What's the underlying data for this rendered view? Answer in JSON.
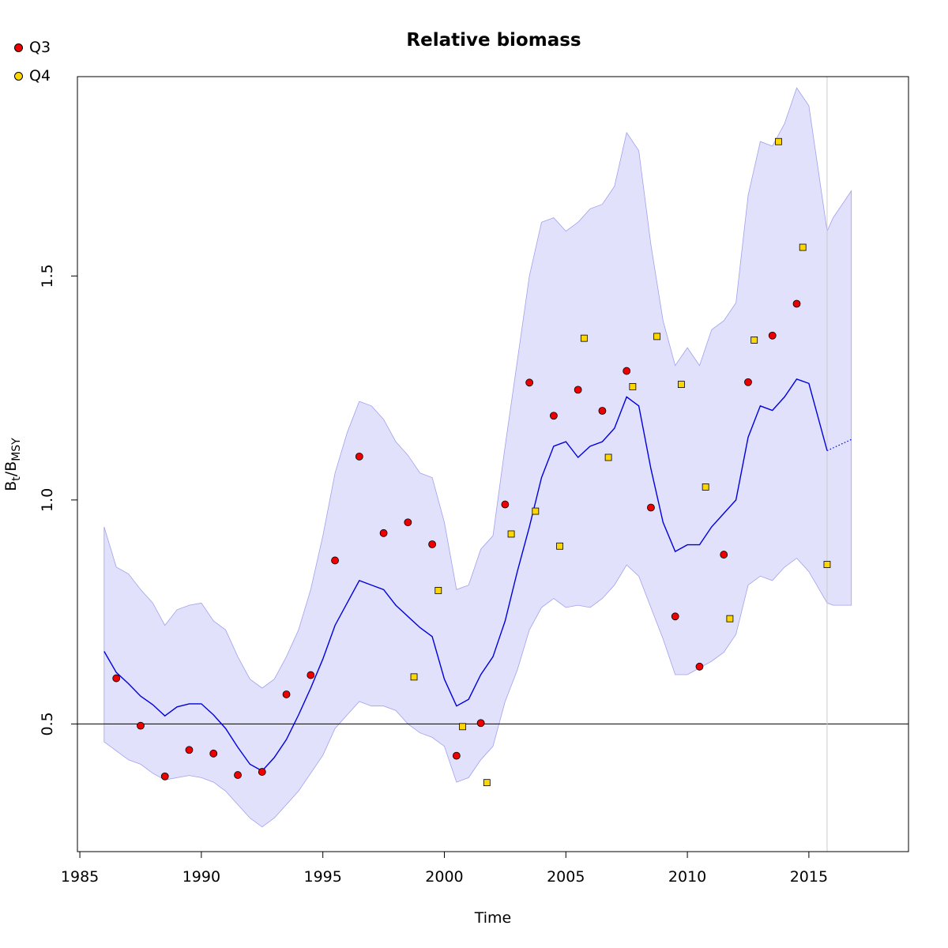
{
  "chart_data": {
    "type": "line",
    "title": "Relative biomass",
    "xlabel": "Time",
    "ylabel": {
      "main": "B",
      "sub1": "t",
      "sep": "/B",
      "sub2": "MSY"
    },
    "xlim": [
      1984.9,
      2019.1
    ],
    "ylim": [
      0.215,
      1.945
    ],
    "x_ticks": [
      1985,
      1990,
      1995,
      2000,
      2005,
      2010,
      2015
    ],
    "y_ticks": [
      0.5,
      1.0,
      1.5
    ],
    "y_tick_labels": [
      "0.5",
      "1.0",
      "1.5"
    ],
    "reference_line": 0.5,
    "forecast_start": 2015.75,
    "legend": {
      "position": "top-left",
      "items": [
        {
          "label": "Q3",
          "color": "#ee0000",
          "shape": "circle"
        },
        {
          "label": "Q4",
          "color": "#ffd700",
          "shape": "square"
        }
      ]
    },
    "colors": {
      "estimate": "#0000dd",
      "band_fill": "#e1e1fc",
      "band_edge": "#a0a0ee",
      "ref_line": "#000000",
      "vline": "#cccccc"
    },
    "series": [
      {
        "name": "Q3",
        "x": [
          1986.5,
          1987.5,
          1988.5,
          1989.5,
          1990.5,
          1991.5,
          1992.5,
          1993.5,
          1994.5,
          1995.5,
          1996.5,
          1997.5,
          1998.5,
          1999.5,
          2000.5,
          2001.5,
          2002.5,
          2003.5,
          2004.5,
          2005.5,
          2006.5,
          2007.5,
          2008.5,
          2009.5,
          2010.5,
          2011.5,
          2012.5,
          2013.5,
          2014.5
        ],
        "y": [
          0.602,
          0.496,
          0.383,
          0.442,
          0.434,
          0.386,
          0.393,
          0.566,
          0.609,
          0.865,
          1.097,
          0.926,
          0.95,
          0.901,
          0.429,
          0.502,
          0.99,
          1.262,
          1.188,
          1.246,
          1.199,
          1.288,
          0.983,
          0.74,
          0.628,
          0.878,
          1.263,
          1.367,
          1.438
        ]
      },
      {
        "name": "Q4",
        "x": [
          1998.75,
          1999.75,
          2000.75,
          2001.75,
          2002.75,
          2003.75,
          2004.75,
          2005.75,
          2006.75,
          2007.75,
          2008.75,
          2009.75,
          2010.75,
          2011.75,
          2012.75,
          2013.75,
          2014.75,
          2015.75
        ],
        "y": [
          0.605,
          0.798,
          0.494,
          0.369,
          0.924,
          0.975,
          0.897,
          1.361,
          1.095,
          1.253,
          1.365,
          1.258,
          1.029,
          0.735,
          1.357,
          1.8,
          1.564,
          0.856
        ]
      },
      {
        "name": "",
        "kind": "estimate",
        "x": [
          1986,
          1986.5,
          1987,
          1987.5,
          1988,
          1988.5,
          1989,
          1989.5,
          1990,
          1990.5,
          1991,
          1991.5,
          1992,
          1992.5,
          1993,
          1993.5,
          1994,
          1994.5,
          1995,
          1995.5,
          1996,
          1996.5,
          1997,
          1997.5,
          1998,
          1998.5,
          1999,
          1999.5,
          2000,
          2000.5,
          2001,
          2001.5,
          2002,
          2002.5,
          2003,
          2003.5,
          2004,
          2004.5,
          2005,
          2005.5,
          2006,
          2006.5,
          2007,
          2007.5,
          2008,
          2008.5,
          2009,
          2009.5,
          2010,
          2010.5,
          2011,
          2011.5,
          2012,
          2012.5,
          2013,
          2013.5,
          2014,
          2014.5,
          2015,
          2015.75
        ],
        "y": [
          0.662,
          0.615,
          0.59,
          0.562,
          0.543,
          0.518,
          0.538,
          0.545,
          0.545,
          0.52,
          0.49,
          0.448,
          0.41,
          0.395,
          0.425,
          0.465,
          0.52,
          0.58,
          0.645,
          0.72,
          0.77,
          0.82,
          0.81,
          0.8,
          0.765,
          0.74,
          0.715,
          0.695,
          0.6,
          0.54,
          0.555,
          0.61,
          0.65,
          0.73,
          0.84,
          0.94,
          1.05,
          1.12,
          1.13,
          1.095,
          1.12,
          1.13,
          1.16,
          1.23,
          1.21,
          1.07,
          0.95,
          0.885,
          0.9,
          0.9,
          0.94,
          0.97,
          1.0,
          1.14,
          1.21,
          1.2,
          1.23,
          1.27,
          1.26,
          1.11
        ]
      },
      {
        "name": "",
        "kind": "forecast",
        "x": [
          2015.75,
          2016.75
        ],
        "y": [
          1.11,
          1.135
        ]
      },
      {
        "name": "",
        "kind": "upper_bound",
        "x": [
          1986,
          1986.5,
          1987,
          1987.5,
          1988,
          1988.5,
          1989,
          1989.5,
          1990,
          1990.5,
          1991,
          1991.5,
          1992,
          1992.5,
          1993,
          1993.5,
          1994,
          1994.5,
          1995,
          1995.5,
          1996,
          1996.5,
          1997,
          1997.5,
          1998,
          1998.5,
          1999,
          1999.5,
          2000,
          2000.5,
          2001,
          2001.5,
          2002,
          2002.5,
          2003,
          2003.5,
          2004,
          2004.5,
          2005,
          2005.5,
          2006,
          2006.5,
          2007,
          2007.5,
          2008,
          2008.5,
          2009,
          2009.5,
          2010,
          2010.5,
          2011,
          2011.5,
          2012,
          2012.5,
          2013,
          2013.5,
          2014,
          2014.5,
          2015,
          2015.75,
          2016,
          2016.75
        ],
        "y": [
          0.94,
          0.85,
          0.835,
          0.8,
          0.77,
          0.72,
          0.755,
          0.765,
          0.77,
          0.73,
          0.71,
          0.65,
          0.6,
          0.58,
          0.6,
          0.65,
          0.71,
          0.8,
          0.92,
          1.06,
          1.15,
          1.22,
          1.21,
          1.18,
          1.13,
          1.1,
          1.06,
          1.05,
          0.95,
          0.8,
          0.81,
          0.89,
          0.92,
          1.12,
          1.31,
          1.5,
          1.62,
          1.63,
          1.6,
          1.62,
          1.65,
          1.66,
          1.7,
          1.82,
          1.78,
          1.57,
          1.4,
          1.3,
          1.34,
          1.3,
          1.38,
          1.4,
          1.44,
          1.68,
          1.8,
          1.79,
          1.84,
          1.92,
          1.88,
          1.6,
          1.63,
          1.69
        ]
      },
      {
        "name": "",
        "kind": "lower_bound",
        "x": [
          1986,
          1986.5,
          1987,
          1987.5,
          1988,
          1988.5,
          1989,
          1989.5,
          1990,
          1990.5,
          1991,
          1991.5,
          1992,
          1992.5,
          1993,
          1993.5,
          1994,
          1994.5,
          1995,
          1995.5,
          1996,
          1996.5,
          1997,
          1997.5,
          1998,
          1998.5,
          1999,
          1999.5,
          2000,
          2000.5,
          2001,
          2001.5,
          2002,
          2002.5,
          2003,
          2003.5,
          2004,
          2004.5,
          2005,
          2005.5,
          2006,
          2006.5,
          2007,
          2007.5,
          2008,
          2008.5,
          2009,
          2009.5,
          2010,
          2010.5,
          2011,
          2011.5,
          2012,
          2012.5,
          2013,
          2013.5,
          2014,
          2014.5,
          2015,
          2015.75,
          2016,
          2016.75
        ],
        "y": [
          0.46,
          0.44,
          0.42,
          0.41,
          0.39,
          0.375,
          0.38,
          0.385,
          0.38,
          0.37,
          0.35,
          0.32,
          0.29,
          0.27,
          0.29,
          0.32,
          0.35,
          0.39,
          0.43,
          0.49,
          0.52,
          0.55,
          0.54,
          0.54,
          0.53,
          0.5,
          0.48,
          0.47,
          0.45,
          0.37,
          0.38,
          0.42,
          0.45,
          0.55,
          0.62,
          0.71,
          0.76,
          0.78,
          0.76,
          0.765,
          0.76,
          0.78,
          0.81,
          0.855,
          0.83,
          0.76,
          0.69,
          0.61,
          0.61,
          0.625,
          0.64,
          0.66,
          0.7,
          0.81,
          0.83,
          0.82,
          0.85,
          0.87,
          0.84,
          0.77,
          0.765,
          0.765
        ]
      }
    ]
  }
}
